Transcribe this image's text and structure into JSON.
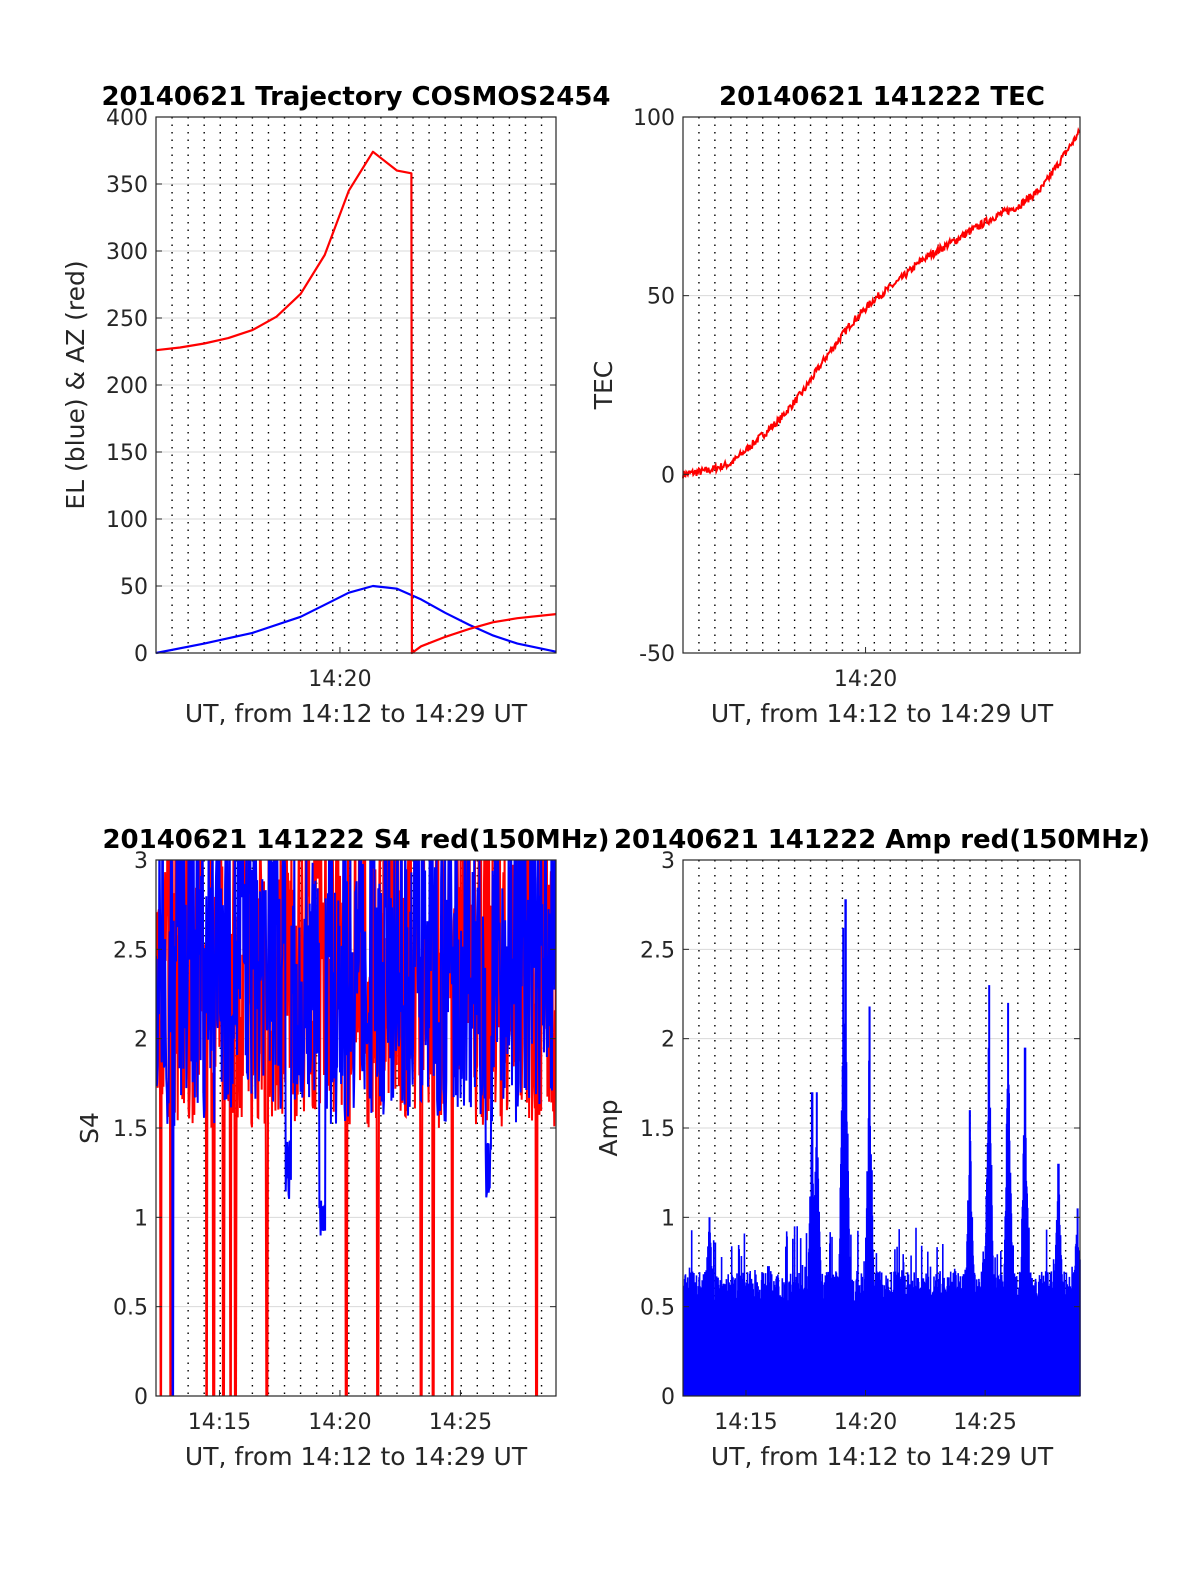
{
  "colors": {
    "red": "#ff0000",
    "blue": "#0000ff",
    "axis": "#262626",
    "grid": "#d9d9d9"
  },
  "chart_data": [
    {
      "type": "line",
      "title": "20140621 Trajectory COSMOS2454",
      "xlabel": "UT, from 14:12 to 14:29 UT",
      "ylabel": "EL (blue) & AZ (red)",
      "xlim": [
        "14:12:22",
        "14:28:58"
      ],
      "ylim": [
        0,
        400
      ],
      "yticks": [
        "0",
        "50",
        "100",
        "150",
        "200",
        "250",
        "300",
        "350",
        "400"
      ],
      "xticks": [
        "14:20"
      ],
      "grid": "dotted vertical lines every 40 s, horizontal at y-ticks",
      "series": [
        {
          "color": "red",
          "x_min": [
            0,
            1,
            2,
            3,
            4,
            5,
            6,
            7,
            8,
            9,
            10,
            10.6,
            10.62,
            11,
            12,
            13,
            14,
            15,
            16.6
          ],
          "values": [
            226,
            228,
            231,
            235,
            241,
            251,
            268,
            297,
            345,
            374,
            360,
            358,
            0,
            5,
            12,
            18,
            23,
            26,
            29
          ]
        },
        {
          "color": "blue",
          "x_min": [
            0,
            2,
            4,
            6,
            7,
            8,
            9,
            10,
            11,
            12,
            13,
            14,
            15,
            16.6
          ],
          "values": [
            0,
            7,
            15,
            27,
            36,
            45,
            50,
            48,
            40,
            30,
            21,
            13,
            7,
            1
          ]
        }
      ]
    },
    {
      "type": "line",
      "title": "20140621 141222 TEC",
      "xlabel": "UT, from 14:12 to 14:29 UT",
      "ylabel": "TEC",
      "xlim": [
        "14:12:22",
        "14:28:58"
      ],
      "ylim": [
        -50,
        100
      ],
      "yticks": [
        "-50",
        "0",
        "50",
        "100"
      ],
      "xticks": [
        "14:20"
      ],
      "series": [
        {
          "color": "red",
          "x_min": [
            0,
            1,
            2,
            3,
            4,
            5,
            6,
            7,
            8,
            9,
            10,
            11,
            12,
            13,
            14,
            15,
            15.5,
            16.6
          ],
          "values": [
            0,
            1,
            3,
            9,
            15,
            23,
            33,
            42,
            49,
            54,
            60,
            64,
            68,
            72,
            75,
            80,
            85,
            96
          ]
        }
      ]
    },
    {
      "type": "line",
      "title": "20140621 141222 S4 red(150MHz)",
      "xlabel": "UT, from 14:12 to 14:29 UT",
      "ylabel": "S4",
      "xlim": [
        "14:12:22",
        "14:28:58"
      ],
      "ylim": [
        0,
        3
      ],
      "yticks": [
        "0",
        "0.5",
        "1",
        "1.5",
        "2",
        "2.5",
        "3"
      ],
      "xticks": [
        "14:15",
        "14:20",
        "14:25"
      ],
      "series": [
        {
          "color": "red",
          "description_values": "dense noisy series mostly between 1.3 and 3, with drops to 0",
          "x_min_drops": [
            0.2,
            0.6,
            2.1,
            2.4,
            2.8,
            3.1,
            3.3,
            4.6,
            7.9,
            9.2,
            11.0,
            11.5,
            12.3,
            15.8
          ],
          "values": [
            2.2,
            2.6,
            2.3,
            2.8,
            2.1,
            2.5,
            2.9,
            2.4,
            1.3,
            2.7,
            2.2
          ]
        },
        {
          "color": "blue",
          "description_values": "dense noisy series mostly between 1.6 and 3, dips near 14:17, 14:19, 14:26",
          "x_min_dips": [
            5.5,
            6.9,
            13.8
          ],
          "dip_values": [
            1.1,
            0.78,
            1.1
          ],
          "values": [
            2.4,
            2.6,
            2.2,
            2.8,
            2.0,
            2.5,
            2.7,
            2.3,
            1.8,
            2.6,
            2.4
          ]
        }
      ]
    },
    {
      "type": "bar",
      "title": "20140621 141222 Amp red(150MHz)",
      "xlabel": "UT, from 14:12 to 14:29 UT",
      "ylabel": "Amp",
      "xlim": [
        "14:12:22",
        "14:28:58"
      ],
      "ylim": [
        0,
        3
      ],
      "yticks": [
        "0",
        "0.5",
        "1",
        "1.5",
        "2",
        "2.5",
        "3"
      ],
      "xticks": [
        "14:15",
        "14:20",
        "14:25"
      ],
      "series": [
        {
          "color": "blue",
          "description_values": "dense amplitude spikes, baseline ~0.6, peaks listed",
          "peak_x_min": [
            1.1,
            5.4,
            5.6,
            6.7,
            6.8,
            7.8,
            12.0,
            12.8,
            13.6,
            14.3,
            15.7,
            16.5
          ],
          "peak_values": [
            1.0,
            1.7,
            1.7,
            2.62,
            2.78,
            2.18,
            1.6,
            2.3,
            2.2,
            1.95,
            1.3,
            1.05
          ]
        }
      ]
    }
  ]
}
